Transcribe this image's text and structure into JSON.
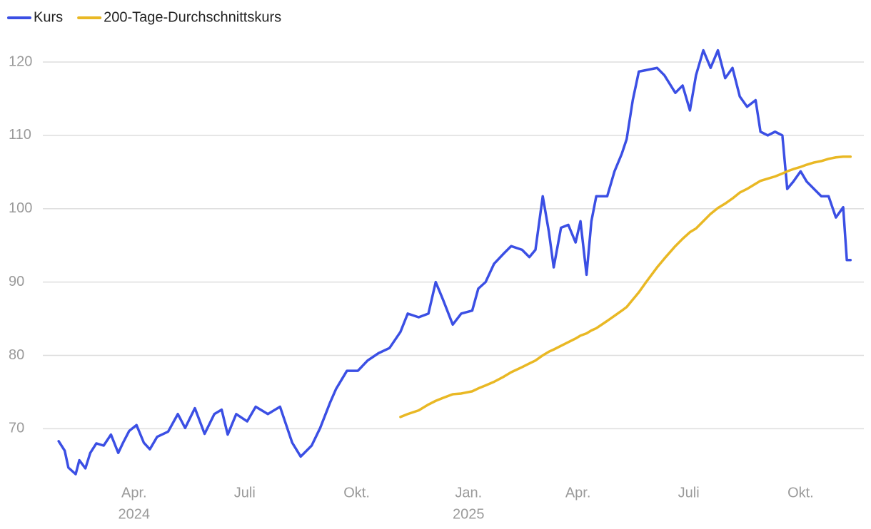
{
  "chart_data": {
    "type": "line",
    "series": [
      {
        "name": "Kurs",
        "color": "#3b4fe4",
        "values": [
          68.3,
          67.0,
          64.7,
          63.8,
          65.7,
          64.6,
          66.7,
          68.0,
          67.7,
          69.2,
          66.7,
          68.1,
          69.7,
          70.5,
          68.1,
          67.2,
          68.9,
          69.6,
          72.0,
          70.1,
          72.8,
          69.3,
          72.0,
          72.6,
          69.2,
          72.0,
          71.0,
          73.0,
          72.0,
          73.0,
          68.1,
          66.2,
          67.7,
          70.1,
          73.5,
          75.4,
          77.9,
          77.9,
          79.3,
          80.3,
          81.0,
          83.2,
          85.7,
          85.2,
          85.7,
          90.0,
          87.6,
          84.2,
          85.7,
          86.1,
          89.1,
          90.0,
          92.5,
          93.9,
          94.9,
          94.4,
          93.4,
          94.4,
          101.7,
          96.9,
          92.0,
          97.4,
          97.8,
          95.4,
          98.3,
          91.0,
          98.3,
          101.7,
          101.7,
          105.1,
          107.5,
          109.5,
          114.8,
          118.7,
          118.9,
          119.2,
          118.2,
          115.8,
          116.8,
          113.4,
          118.2,
          121.6,
          119.2,
          121.6,
          117.8,
          119.2,
          115.3,
          113.9,
          114.8,
          110.5,
          110.0,
          110.5,
          110.0,
          102.7,
          103.7,
          105.1,
          103.7,
          102.7,
          101.7,
          101.7,
          98.8,
          100.2,
          93.0,
          93.0
        ]
      },
      {
        "name": "200-Tage-Durchschnittskurs",
        "color": "#e9b824",
        "values": [
          null,
          null,
          null,
          null,
          null,
          null,
          null,
          null,
          null,
          null,
          null,
          null,
          null,
          null,
          null,
          null,
          null,
          null,
          null,
          null,
          null,
          null,
          null,
          null,
          null,
          null,
          null,
          null,
          null,
          null,
          null,
          null,
          null,
          null,
          null,
          null,
          null,
          null,
          null,
          null,
          null,
          71.6,
          72.0,
          72.5,
          73.3,
          73.8,
          74.2,
          74.7,
          74.8,
          75.1,
          75.5,
          75.9,
          76.4,
          77.1,
          77.7,
          78.4,
          78.9,
          79.3,
          80.0,
          80.5,
          80.8,
          81.3,
          81.8,
          82.3,
          82.7,
          83.0,
          83.4,
          83.7,
          84.7,
          85.4,
          86.1,
          86.6,
          87.6,
          88.6,
          90.0,
          92.0,
          93.2,
          94.9,
          95.9,
          96.8,
          97.3,
          98.3,
          99.3,
          100.1,
          100.7,
          101.4,
          102.2,
          102.7,
          103.4,
          103.8,
          104.1,
          104.4,
          104.8,
          105.1,
          105.4,
          105.7,
          106.0,
          106.3,
          106.5,
          106.8,
          107.0,
          107.1,
          107.1,
          107.1
        ]
      }
    ],
    "x": [
      "2024-01-30",
      "2024-02-04",
      "2024-02-07",
      "2024-02-13",
      "2024-02-16",
      "2024-02-21",
      "2024-02-25",
      "2024-03-01",
      "2024-03-07",
      "2024-03-13",
      "2024-03-19",
      "2024-03-23",
      "2024-03-28",
      "2024-04-03",
      "2024-04-09",
      "2024-04-14",
      "2024-04-20",
      "2024-04-29",
      "2024-05-07",
      "2024-05-13",
      "2024-05-21",
      "2024-05-29",
      "2024-06-06",
      "2024-06-12",
      "2024-06-17",
      "2024-06-24",
      "2024-07-03",
      "2024-07-10",
      "2024-07-20",
      "2024-07-30",
      "2024-08-09",
      "2024-08-16",
      "2024-08-25",
      "2024-09-01",
      "2024-09-09",
      "2024-09-14",
      "2024-09-23",
      "2024-10-02",
      "2024-10-10",
      "2024-10-19",
      "2024-10-28",
      "2024-11-06",
      "2024-11-12",
      "2024-11-21",
      "2024-11-29",
      "2024-12-05",
      "2024-12-11",
      "2024-12-19",
      "2024-12-26",
      "2025-01-04",
      "2025-01-09",
      "2025-01-15",
      "2025-01-22",
      "2025-01-30",
      "2025-02-05",
      "2025-02-14",
      "2025-02-20",
      "2025-02-25",
      "2025-03-03",
      "2025-03-08",
      "2025-03-12",
      "2025-03-18",
      "2025-03-24",
      "2025-03-30",
      "2025-04-03",
      "2025-04-08",
      "2025-04-12",
      "2025-04-16",
      "2025-04-25",
      "2025-05-01",
      "2025-05-07",
      "2025-05-11",
      "2025-05-16",
      "2025-05-21",
      "2025-05-27",
      "2025-06-05",
      "2025-06-11",
      "2025-06-20",
      "2025-06-26",
      "2025-07-02",
      "2025-07-07",
      "2025-07-13",
      "2025-07-19",
      "2025-07-25",
      "2025-07-31",
      "2025-08-06",
      "2025-08-12",
      "2025-08-18",
      "2025-08-25",
      "2025-08-29",
      "2025-09-04",
      "2025-09-10",
      "2025-09-16",
      "2025-09-20",
      "2025-09-25",
      "2025-10-01",
      "2025-10-06",
      "2025-10-12",
      "2025-10-18",
      "2025-10-24",
      "2025-10-30",
      "2025-11-05",
      "2025-11-08",
      "2025-11-11"
    ],
    "xlim": [
      "2024-01-17",
      "2025-11-22"
    ],
    "xticks": [
      {
        "value": "2024-04-01",
        "label": "Apr.",
        "sublabel": "2024"
      },
      {
        "value": "2024-07-01",
        "label": "Juli"
      },
      {
        "value": "2024-10-01",
        "label": "Okt."
      },
      {
        "value": "2025-01-01",
        "label": "Jan.",
        "sublabel": "2025"
      },
      {
        "value": "2025-04-01",
        "label": "Apr."
      },
      {
        "value": "2025-07-01",
        "label": "Juli"
      },
      {
        "value": "2025-10-01",
        "label": "Okt."
      }
    ],
    "ylim": [
      63.5,
      125
    ],
    "yticks": [
      70,
      80,
      90,
      100,
      110,
      120
    ],
    "grid": true,
    "legend": "top-left"
  }
}
